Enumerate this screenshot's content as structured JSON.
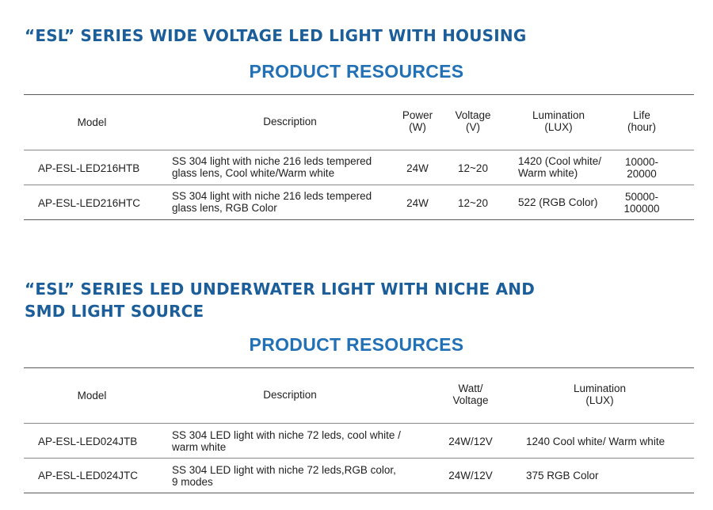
{
  "section1": {
    "title": "“ESL” SERIES WIDE VOLTAGE LED LIGHT WITH HOUSING",
    "subtitle": "PRODUCT RESOURCES",
    "headers": {
      "model": "Model",
      "description": "Description",
      "power_1": "Power",
      "power_2": "(W)",
      "voltage_1": "Voltage",
      "voltage_2": "(V)",
      "lumination_1": "Lumination",
      "lumination_2": "(LUX)",
      "life_1": "Life",
      "life_2": "(hour)"
    },
    "rows": [
      {
        "model": "AP-ESL-LED216HTB",
        "desc_1": "SS 304 light with niche 216 leds tempered",
        "desc_2": "glass lens, Cool white/Warm white",
        "power": "24W",
        "voltage": "12~20",
        "lum_1": "1420 (Cool white/",
        "lum_2": "Warm white)",
        "life_1": "10000-",
        "life_2": "20000"
      },
      {
        "model": "AP-ESL-LED216HTC",
        "desc_1": "SS 304 light with niche 216 leds tempered",
        "desc_2": "glass lens, RGB Color",
        "power": "24W",
        "voltage": "12~20",
        "lum_1": "522 (RGB Color)",
        "life_1": "50000-",
        "life_2": "100000"
      }
    ]
  },
  "section2": {
    "title_1": "“ESL” SERIES LED UNDERWATER LIGHT WITH NICHE AND",
    "title_2": "SMD LIGHT SOURCE",
    "subtitle": "PRODUCT RESOURCES",
    "headers": {
      "model": "Model",
      "description": "Description",
      "watt_1": "Watt/",
      "watt_2": "Voltage",
      "lumination_1": "Lumination",
      "lumination_2": "(LUX)"
    },
    "rows": [
      {
        "model": "AP-ESL-LED024JTB",
        "desc_1": "SS 304 LED light with niche 72 leds, cool white /",
        "desc_2": "warm white",
        "watt": "24W/12V",
        "lum": "1240 Cool white/ Warm white"
      },
      {
        "model": "AP-ESL-LED024JTC",
        "desc_1": "SS 304 LED light with niche 72 leds,RGB color,",
        "desc_2": "9 modes",
        "watt": "24W/12V",
        "lum": "375 RGB Color"
      }
    ]
  }
}
